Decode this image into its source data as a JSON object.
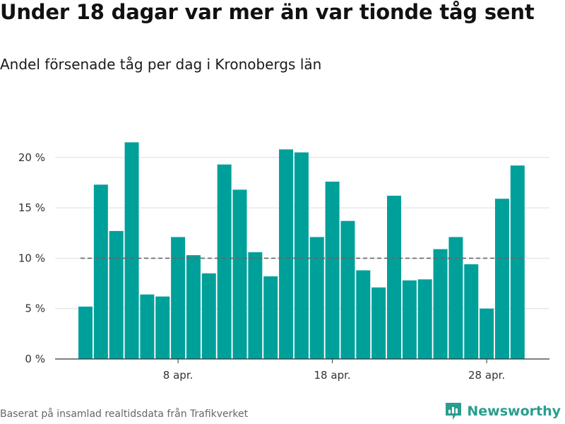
{
  "title": "Under 18 dagar var mer än var tionde tåg sent",
  "subtitle": "Andel försenade tåg per dag i Kronobergs län",
  "footer": "Baserat på insamlad realtidsdata från Trafikverket",
  "brand": "Newsworthy",
  "colors": {
    "bar": "#00a09a",
    "reference": "#666666",
    "grid": "#dddddd",
    "brand": "#2a9d8f"
  },
  "chart_data": {
    "type": "bar",
    "title": "Under 18 dagar var mer än var tionde tåg sent",
    "subtitle": "Andel försenade tåg per dag i Kronobergs län",
    "xlabel": "",
    "ylabel": "",
    "x": [
      "2024-04-02",
      "2024-04-03",
      "2024-04-04",
      "2024-04-05",
      "2024-04-06",
      "2024-04-07",
      "2024-04-08",
      "2024-04-09",
      "2024-04-10",
      "2024-04-11",
      "2024-04-12",
      "2024-04-13",
      "2024-04-14",
      "2024-04-15",
      "2024-04-16",
      "2024-04-17",
      "2024-04-18",
      "2024-04-19",
      "2024-04-20",
      "2024-04-21",
      "2024-04-22",
      "2024-04-23",
      "2024-04-24",
      "2024-04-25",
      "2024-04-26",
      "2024-04-27",
      "2024-04-28",
      "2024-04-29",
      "2024-04-30"
    ],
    "values": [
      5.2,
      17.3,
      12.7,
      21.5,
      6.4,
      6.2,
      12.1,
      10.3,
      8.5,
      19.3,
      16.8,
      10.6,
      8.2,
      20.8,
      20.5,
      12.1,
      17.6,
      13.7,
      8.8,
      7.1,
      16.2,
      7.8,
      7.9,
      10.9,
      12.1,
      9.4,
      5.0,
      15.9,
      19.2
    ],
    "ylim": [
      0,
      23
    ],
    "yticks": [
      0,
      5,
      10,
      15,
      20
    ],
    "ytick_labels": [
      "0 %",
      "5 %",
      "10 %",
      "15 %",
      "20 %"
    ],
    "xtick_labels": [
      {
        "x": "2024-04-08",
        "label": "8 apr."
      },
      {
        "x": "2024-04-18",
        "label": "18 apr."
      },
      {
        "x": "2024-04-28",
        "label": "28 apr."
      }
    ],
    "reference_line": 10,
    "grid": true,
    "legend": "none"
  }
}
